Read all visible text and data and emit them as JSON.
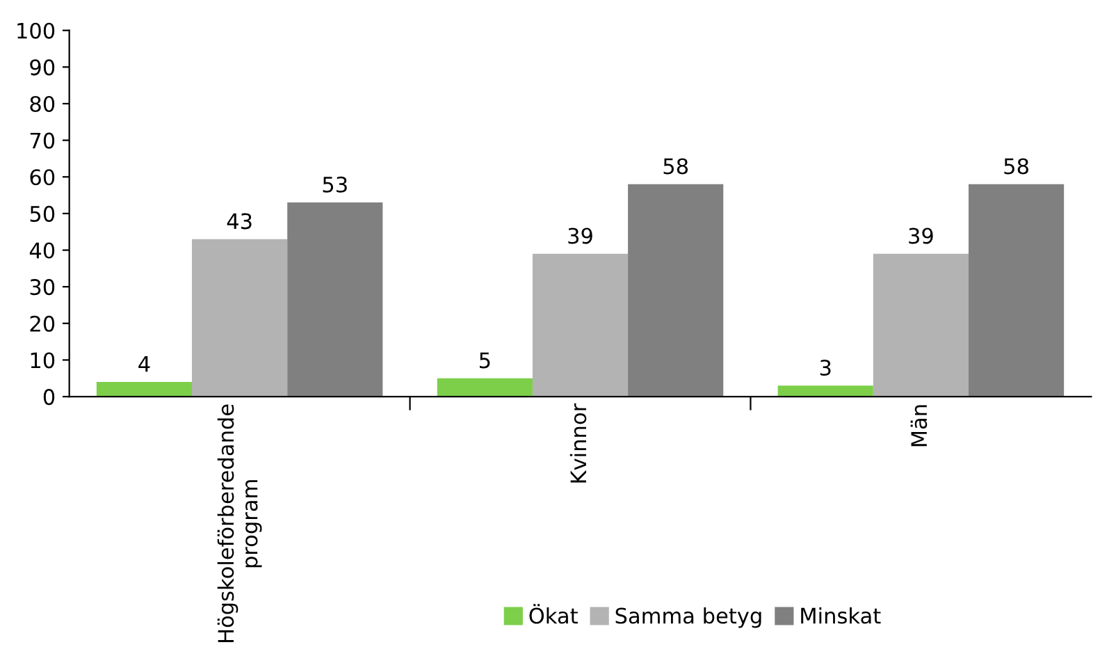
{
  "chart_data": {
    "type": "bar",
    "categories": [
      "Högskoleförberedande program",
      "Kvinnor",
      "Män"
    ],
    "series": [
      {
        "name": "Ökat",
        "color": "#7dcf4a",
        "values": [
          4,
          5,
          3
        ]
      },
      {
        "name": "Samma betyg",
        "color": "#b3b3b3",
        "values": [
          43,
          39,
          39
        ]
      },
      {
        "name": "Minskat",
        "color": "#808080",
        "values": [
          53,
          58,
          58
        ]
      }
    ],
    "ylim": [
      0,
      100
    ],
    "yticks": [
      0,
      10,
      20,
      30,
      40,
      50,
      60,
      70,
      80,
      90,
      100
    ],
    "grid": false,
    "legend": "bottom",
    "data_labels": true
  }
}
